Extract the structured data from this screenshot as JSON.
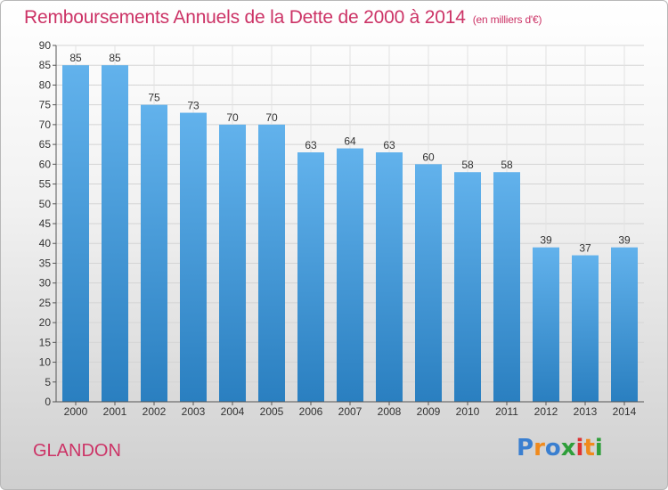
{
  "header": {
    "title": "Remboursements Annuels de la Dette de 2000 à 2014",
    "unit": "(en milliers d'€)"
  },
  "footer": {
    "commune": "GLANDON",
    "logo": [
      "P",
      "r",
      "o",
      "x",
      "i",
      "t",
      "i"
    ]
  },
  "colors": {
    "bar_light": "#62b2ec",
    "bar_dark": "#2a7fc0",
    "title": "#cc3366"
  },
  "chart_data": {
    "type": "bar",
    "title": "Remboursements Annuels de la Dette de 2000 à 2014",
    "ylabel": "",
    "xlabel": "",
    "categories": [
      "2000",
      "2001",
      "2002",
      "2003",
      "2004",
      "2005",
      "2006",
      "2007",
      "2008",
      "2009",
      "2010",
      "2011",
      "2012",
      "2013",
      "2014"
    ],
    "values": [
      85,
      85,
      75,
      73,
      70,
      70,
      63,
      64,
      63,
      60,
      58,
      58,
      39,
      37,
      39
    ],
    "ylim": [
      0,
      90
    ],
    "yticks": [
      0,
      5,
      10,
      15,
      20,
      25,
      30,
      35,
      40,
      45,
      50,
      55,
      60,
      65,
      70,
      75,
      80,
      85,
      90
    ],
    "grid": true
  }
}
